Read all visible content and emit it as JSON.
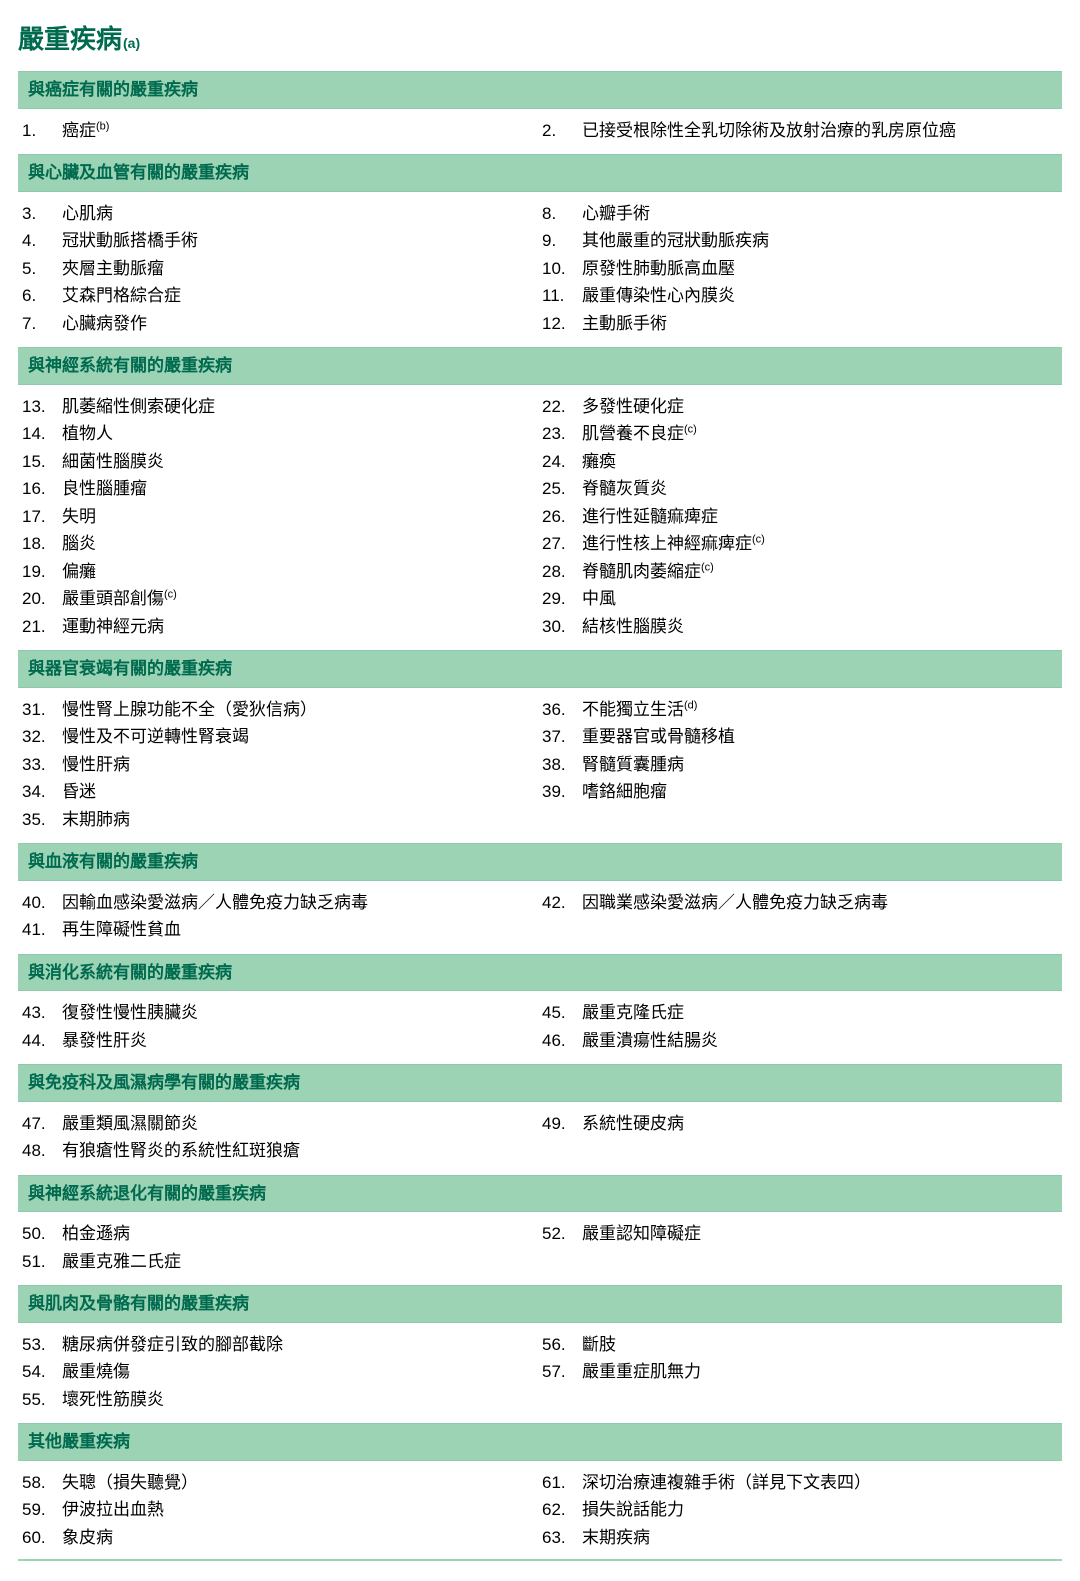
{
  "colors": {
    "accent": "#006a4e",
    "headerBg": "#9cd3b5",
    "headerBorder": "#8fc9ab",
    "bodyBg": "#ffffff",
    "textColor": "#000000"
  },
  "typography": {
    "titleFontSize": 26,
    "titleFontWeight": 700,
    "headerFontSize": 17,
    "headerFontWeight": 700,
    "bodyFontSize": 17,
    "supFontSize": 11
  },
  "pageTitle": {
    "text": "嚴重疾病",
    "sup": "(a)"
  },
  "sections": [
    {
      "header": "與癌症有關的嚴重疾病",
      "left": [
        {
          "num": "1.",
          "text": "癌症",
          "sup": "(b)"
        }
      ],
      "right": [
        {
          "num": "2.",
          "text": "已接受根除性全乳切除術及放射治療的乳房原位癌"
        }
      ]
    },
    {
      "header": "與心臟及血管有關的嚴重疾病",
      "left": [
        {
          "num": "3.",
          "text": "心肌病"
        },
        {
          "num": "4.",
          "text": "冠狀動脈搭橋手術"
        },
        {
          "num": "5.",
          "text": "夾層主動脈瘤"
        },
        {
          "num": "6.",
          "text": "艾森門格綜合症"
        },
        {
          "num": "7.",
          "text": "心臟病發作"
        }
      ],
      "right": [
        {
          "num": "8.",
          "text": "心瓣手術"
        },
        {
          "num": "9.",
          "text": "其他嚴重的冠狀動脈疾病"
        },
        {
          "num": "10.",
          "text": "原發性肺動脈高血壓"
        },
        {
          "num": "11.",
          "text": "嚴重傳染性心內膜炎"
        },
        {
          "num": "12.",
          "text": "主動脈手術"
        }
      ]
    },
    {
      "header": "與神經系統有關的嚴重疾病",
      "left": [
        {
          "num": "13.",
          "text": "肌萎縮性側索硬化症"
        },
        {
          "num": "14.",
          "text": "植物人"
        },
        {
          "num": "15.",
          "text": "細菌性腦膜炎"
        },
        {
          "num": "16.",
          "text": "良性腦腫瘤"
        },
        {
          "num": "17.",
          "text": "失明"
        },
        {
          "num": "18.",
          "text": "腦炎"
        },
        {
          "num": "19.",
          "text": "偏癱"
        },
        {
          "num": "20.",
          "text": "嚴重頭部創傷",
          "sup": "(c)"
        },
        {
          "num": "21.",
          "text": "運動神經元病"
        }
      ],
      "right": [
        {
          "num": "22.",
          "text": "多發性硬化症"
        },
        {
          "num": "23.",
          "text": "肌營養不良症",
          "sup": "(c)"
        },
        {
          "num": "24.",
          "text": "癱瘓"
        },
        {
          "num": "25.",
          "text": "脊髓灰質炎"
        },
        {
          "num": "26.",
          "text": "進行性延髓痲痺症"
        },
        {
          "num": "27.",
          "text": "進行性核上神經痲痺症",
          "sup": "(c)"
        },
        {
          "num": "28.",
          "text": "脊髓肌肉萎縮症",
          "sup": "(c)"
        },
        {
          "num": "29.",
          "text": "中風"
        },
        {
          "num": "30.",
          "text": "結核性腦膜炎"
        }
      ]
    },
    {
      "header": "與器官衰竭有關的嚴重疾病",
      "left": [
        {
          "num": "31.",
          "text": "慢性腎上腺功能不全（愛狄信病）"
        },
        {
          "num": "32.",
          "text": "慢性及不可逆轉性腎衰竭"
        },
        {
          "num": "33.",
          "text": "慢性肝病"
        },
        {
          "num": "34.",
          "text": "昏迷"
        },
        {
          "num": "35.",
          "text": "末期肺病"
        }
      ],
      "right": [
        {
          "num": "36.",
          "text": "不能獨立生活",
          "sup": "(d)"
        },
        {
          "num": "37.",
          "text": "重要器官或骨髓移植"
        },
        {
          "num": "38.",
          "text": "腎髓質囊腫病"
        },
        {
          "num": "39.",
          "text": "嗜鉻細胞瘤"
        }
      ]
    },
    {
      "header": "與血液有關的嚴重疾病",
      "left": [
        {
          "num": "40.",
          "text": "因輸血感染愛滋病／人體免疫力缺乏病毒"
        },
        {
          "num": "41.",
          "text": "再生障礙性貧血"
        }
      ],
      "right": [
        {
          "num": "42.",
          "text": "因職業感染愛滋病／人體免疫力缺乏病毒"
        }
      ]
    },
    {
      "header": "與消化系統有關的嚴重疾病",
      "left": [
        {
          "num": "43.",
          "text": "復發性慢性胰臟炎"
        },
        {
          "num": "44.",
          "text": "暴發性肝炎"
        }
      ],
      "right": [
        {
          "num": "45.",
          "text": "嚴重克隆氏症"
        },
        {
          "num": "46.",
          "text": "嚴重潰瘍性結腸炎"
        }
      ]
    },
    {
      "header": "與免疫科及風濕病學有關的嚴重疾病",
      "left": [
        {
          "num": "47.",
          "text": "嚴重類風濕關節炎"
        },
        {
          "num": "48.",
          "text": "有狼瘡性腎炎的系統性紅斑狼瘡"
        }
      ],
      "right": [
        {
          "num": "49.",
          "text": "系統性硬皮病"
        }
      ]
    },
    {
      "header": "與神經系統退化有關的嚴重疾病",
      "left": [
        {
          "num": "50.",
          "text": "柏金遜病"
        },
        {
          "num": "51.",
          "text": "嚴重克雅二氏症"
        }
      ],
      "right": [
        {
          "num": "52.",
          "text": "嚴重認知障礙症"
        }
      ]
    },
    {
      "header": "與肌肉及骨骼有關的嚴重疾病",
      "left": [
        {
          "num": "53.",
          "text": "糖尿病併發症引致的腳部截除"
        },
        {
          "num": "54.",
          "text": "嚴重燒傷"
        },
        {
          "num": "55.",
          "text": "壞死性筋膜炎"
        }
      ],
      "right": [
        {
          "num": "56.",
          "text": "斷肢"
        },
        {
          "num": "57.",
          "text": "嚴重重症肌無力"
        }
      ]
    },
    {
      "header": "其他嚴重疾病",
      "left": [
        {
          "num": "58.",
          "text": "失聰（損失聽覺）"
        },
        {
          "num": "59.",
          "text": "伊波拉出血熱"
        },
        {
          "num": "60.",
          "text": "象皮病"
        }
      ],
      "right": [
        {
          "num": "61.",
          "text": "深切治療連複雜手術（詳見下文表四）"
        },
        {
          "num": "62.",
          "text": "損失說話能力"
        },
        {
          "num": "63.",
          "text": "末期疾病"
        }
      ]
    }
  ]
}
